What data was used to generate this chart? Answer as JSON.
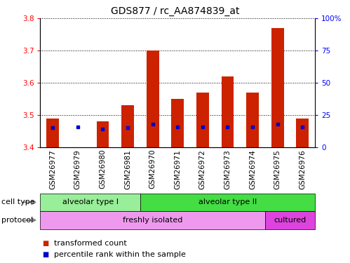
{
  "title": "GDS877 / rc_AA874839_at",
  "samples": [
    "GSM26977",
    "GSM26979",
    "GSM26980",
    "GSM26981",
    "GSM26970",
    "GSM26971",
    "GSM26972",
    "GSM26973",
    "GSM26974",
    "GSM26975",
    "GSM26976"
  ],
  "bar_values": [
    3.49,
    3.4,
    3.48,
    3.53,
    3.7,
    3.55,
    3.57,
    3.62,
    3.57,
    3.77,
    3.49
  ],
  "bar_base": 3.4,
  "percentile_values": [
    15,
    16,
    14,
    15,
    18,
    16,
    16,
    16,
    16,
    18,
    16
  ],
  "bar_color": "#cc2200",
  "percentile_color": "#0000cc",
  "cell_type_labels": [
    "alveolar type I",
    "alveolar type II"
  ],
  "cell_type_color_I": "#99ee99",
  "cell_type_color_II": "#44dd44",
  "protocol_labels": [
    "freshly isolated",
    "cultured"
  ],
  "protocol_color_fresh": "#ee99ee",
  "protocol_color_cultured": "#dd44dd",
  "ylim_left": [
    3.4,
    3.8
  ],
  "ylim_right": [
    0,
    100
  ],
  "yticks_left": [
    3.4,
    3.5,
    3.6,
    3.7,
    3.8
  ],
  "yticks_right": [
    0,
    25,
    50,
    75,
    100
  ],
  "background_color": "#ffffff",
  "title_fontsize": 10,
  "tick_fontsize": 7.5,
  "label_fontsize": 8.5,
  "annot_fontsize": 8,
  "legend_fontsize": 8
}
